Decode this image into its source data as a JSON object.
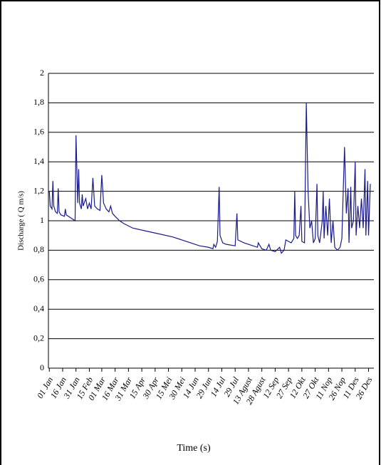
{
  "chart_data": {
    "type": "line",
    "y_label": "Discharge ( Q m/s)",
    "x_label": "Time (s)",
    "color": "#1a1a8c",
    "grid": true,
    "ylim": [
      0,
      2
    ],
    "yticks": [
      0,
      {
        "value": 0.2,
        "label": "0,2"
      },
      {
        "value": 0.4,
        "label": "0,4"
      },
      {
        "value": 0.6,
        "label": "0,6"
      },
      {
        "value": 0.8,
        "label": "0,8"
      },
      1,
      {
        "value": 1.2,
        "label": "1,2"
      },
      {
        "value": 1.4,
        "label": "1,4"
      },
      {
        "value": 1.6,
        "label": "1,6"
      },
      {
        "value": 1.8,
        "label": "1,8"
      },
      2
    ],
    "xlim": [
      0,
      366
    ],
    "xticks": [
      {
        "value": 1,
        "label": "01 Jan"
      },
      {
        "value": 16,
        "label": "16 Jan"
      },
      {
        "value": 31,
        "label": "31 Jan"
      },
      {
        "value": 46,
        "label": "15 Feb"
      },
      {
        "value": 60,
        "label": "01 Mar"
      },
      {
        "value": 75,
        "label": "16 Mar"
      },
      {
        "value": 90,
        "label": "31 Mar"
      },
      {
        "value": 105,
        "label": "15 Apr"
      },
      {
        "value": 120,
        "label": "30 Apr"
      },
      {
        "value": 135,
        "label": "15 Mei"
      },
      {
        "value": 150,
        "label": "30 Mei"
      },
      {
        "value": 165,
        "label": "14 Jun"
      },
      {
        "value": 180,
        "label": "29 Jun"
      },
      {
        "value": 195,
        "label": "14 Jul"
      },
      {
        "value": 210,
        "label": "29 Jul"
      },
      {
        "value": 225,
        "label": "13 Agust"
      },
      {
        "value": 240,
        "label": "28 Agust"
      },
      {
        "value": 255,
        "label": "12 Sep"
      },
      {
        "value": 270,
        "label": "27 Sep"
      },
      {
        "value": 285,
        "label": "12 Okt"
      },
      {
        "value": 300,
        "label": "27 Okt"
      },
      {
        "value": 315,
        "label": "11 Nop"
      },
      {
        "value": 330,
        "label": "26 Nop"
      },
      {
        "value": 345,
        "label": "11 Des"
      },
      {
        "value": 360,
        "label": "26 Des"
      }
    ],
    "x": [
      1,
      2,
      4,
      5,
      6,
      8,
      10,
      11,
      12,
      14,
      18,
      19,
      20,
      25,
      30,
      31,
      33,
      34,
      35,
      37,
      38,
      39,
      42,
      44,
      46,
      48,
      50,
      52,
      55,
      58,
      60,
      62,
      65,
      68,
      70,
      72,
      75,
      80,
      85,
      95,
      110,
      125,
      140,
      150,
      160,
      170,
      180,
      185,
      186,
      188,
      190,
      192,
      193,
      196,
      200,
      210,
      212,
      213,
      220,
      230,
      235,
      236,
      240,
      245,
      248,
      250,
      255,
      260,
      262,
      265,
      267,
      270,
      273,
      276,
      277,
      278,
      280,
      282,
      284,
      285,
      288,
      290,
      292,
      294,
      296,
      298,
      300,
      302,
      303,
      305,
      308,
      309,
      310,
      312,
      314,
      316,
      318,
      320,
      322,
      325,
      328,
      330,
      332,
      333,
      335,
      337,
      338,
      340,
      341,
      343,
      345,
      346,
      348,
      350,
      352,
      354,
      356,
      357,
      359,
      360,
      362
    ],
    "values": [
      1.2,
      1.1,
      1.08,
      1.27,
      1.1,
      1.06,
      1.05,
      1.22,
      1.06,
      1.04,
      1.03,
      1.08,
      1.04,
      1.02,
      1.0,
      1.58,
      1.12,
      1.35,
      1.12,
      1.08,
      1.18,
      1.1,
      1.15,
      1.08,
      1.12,
      1.08,
      1.29,
      1.1,
      1.08,
      1.07,
      1.31,
      1.12,
      1.08,
      1.06,
      1.1,
      1.05,
      1.03,
      1.0,
      0.98,
      0.95,
      0.93,
      0.91,
      0.89,
      0.87,
      0.85,
      0.83,
      0.82,
      0.81,
      0.84,
      0.82,
      0.86,
      1.23,
      0.9,
      0.85,
      0.84,
      0.83,
      1.05,
      0.87,
      0.85,
      0.83,
      0.82,
      0.85,
      0.81,
      0.8,
      0.84,
      0.8,
      0.79,
      0.82,
      0.78,
      0.8,
      0.87,
      0.86,
      0.85,
      0.88,
      1.2,
      0.9,
      0.88,
      0.9,
      1.1,
      0.86,
      0.85,
      1.8,
      1.2,
      0.95,
      1.0,
      0.85,
      0.88,
      1.25,
      0.9,
      0.85,
      1.0,
      1.2,
      0.88,
      1.1,
      0.9,
      1.15,
      0.85,
      1.0,
      0.82,
      0.8,
      0.82,
      0.88,
      1.3,
      1.5,
      1.05,
      1.22,
      0.85,
      1.23,
      0.95,
      1.0,
      1.4,
      0.9,
      1.1,
      0.95,
      1.15,
      0.95,
      1.35,
      0.9,
      1.27,
      0.9,
      1.25
    ]
  }
}
